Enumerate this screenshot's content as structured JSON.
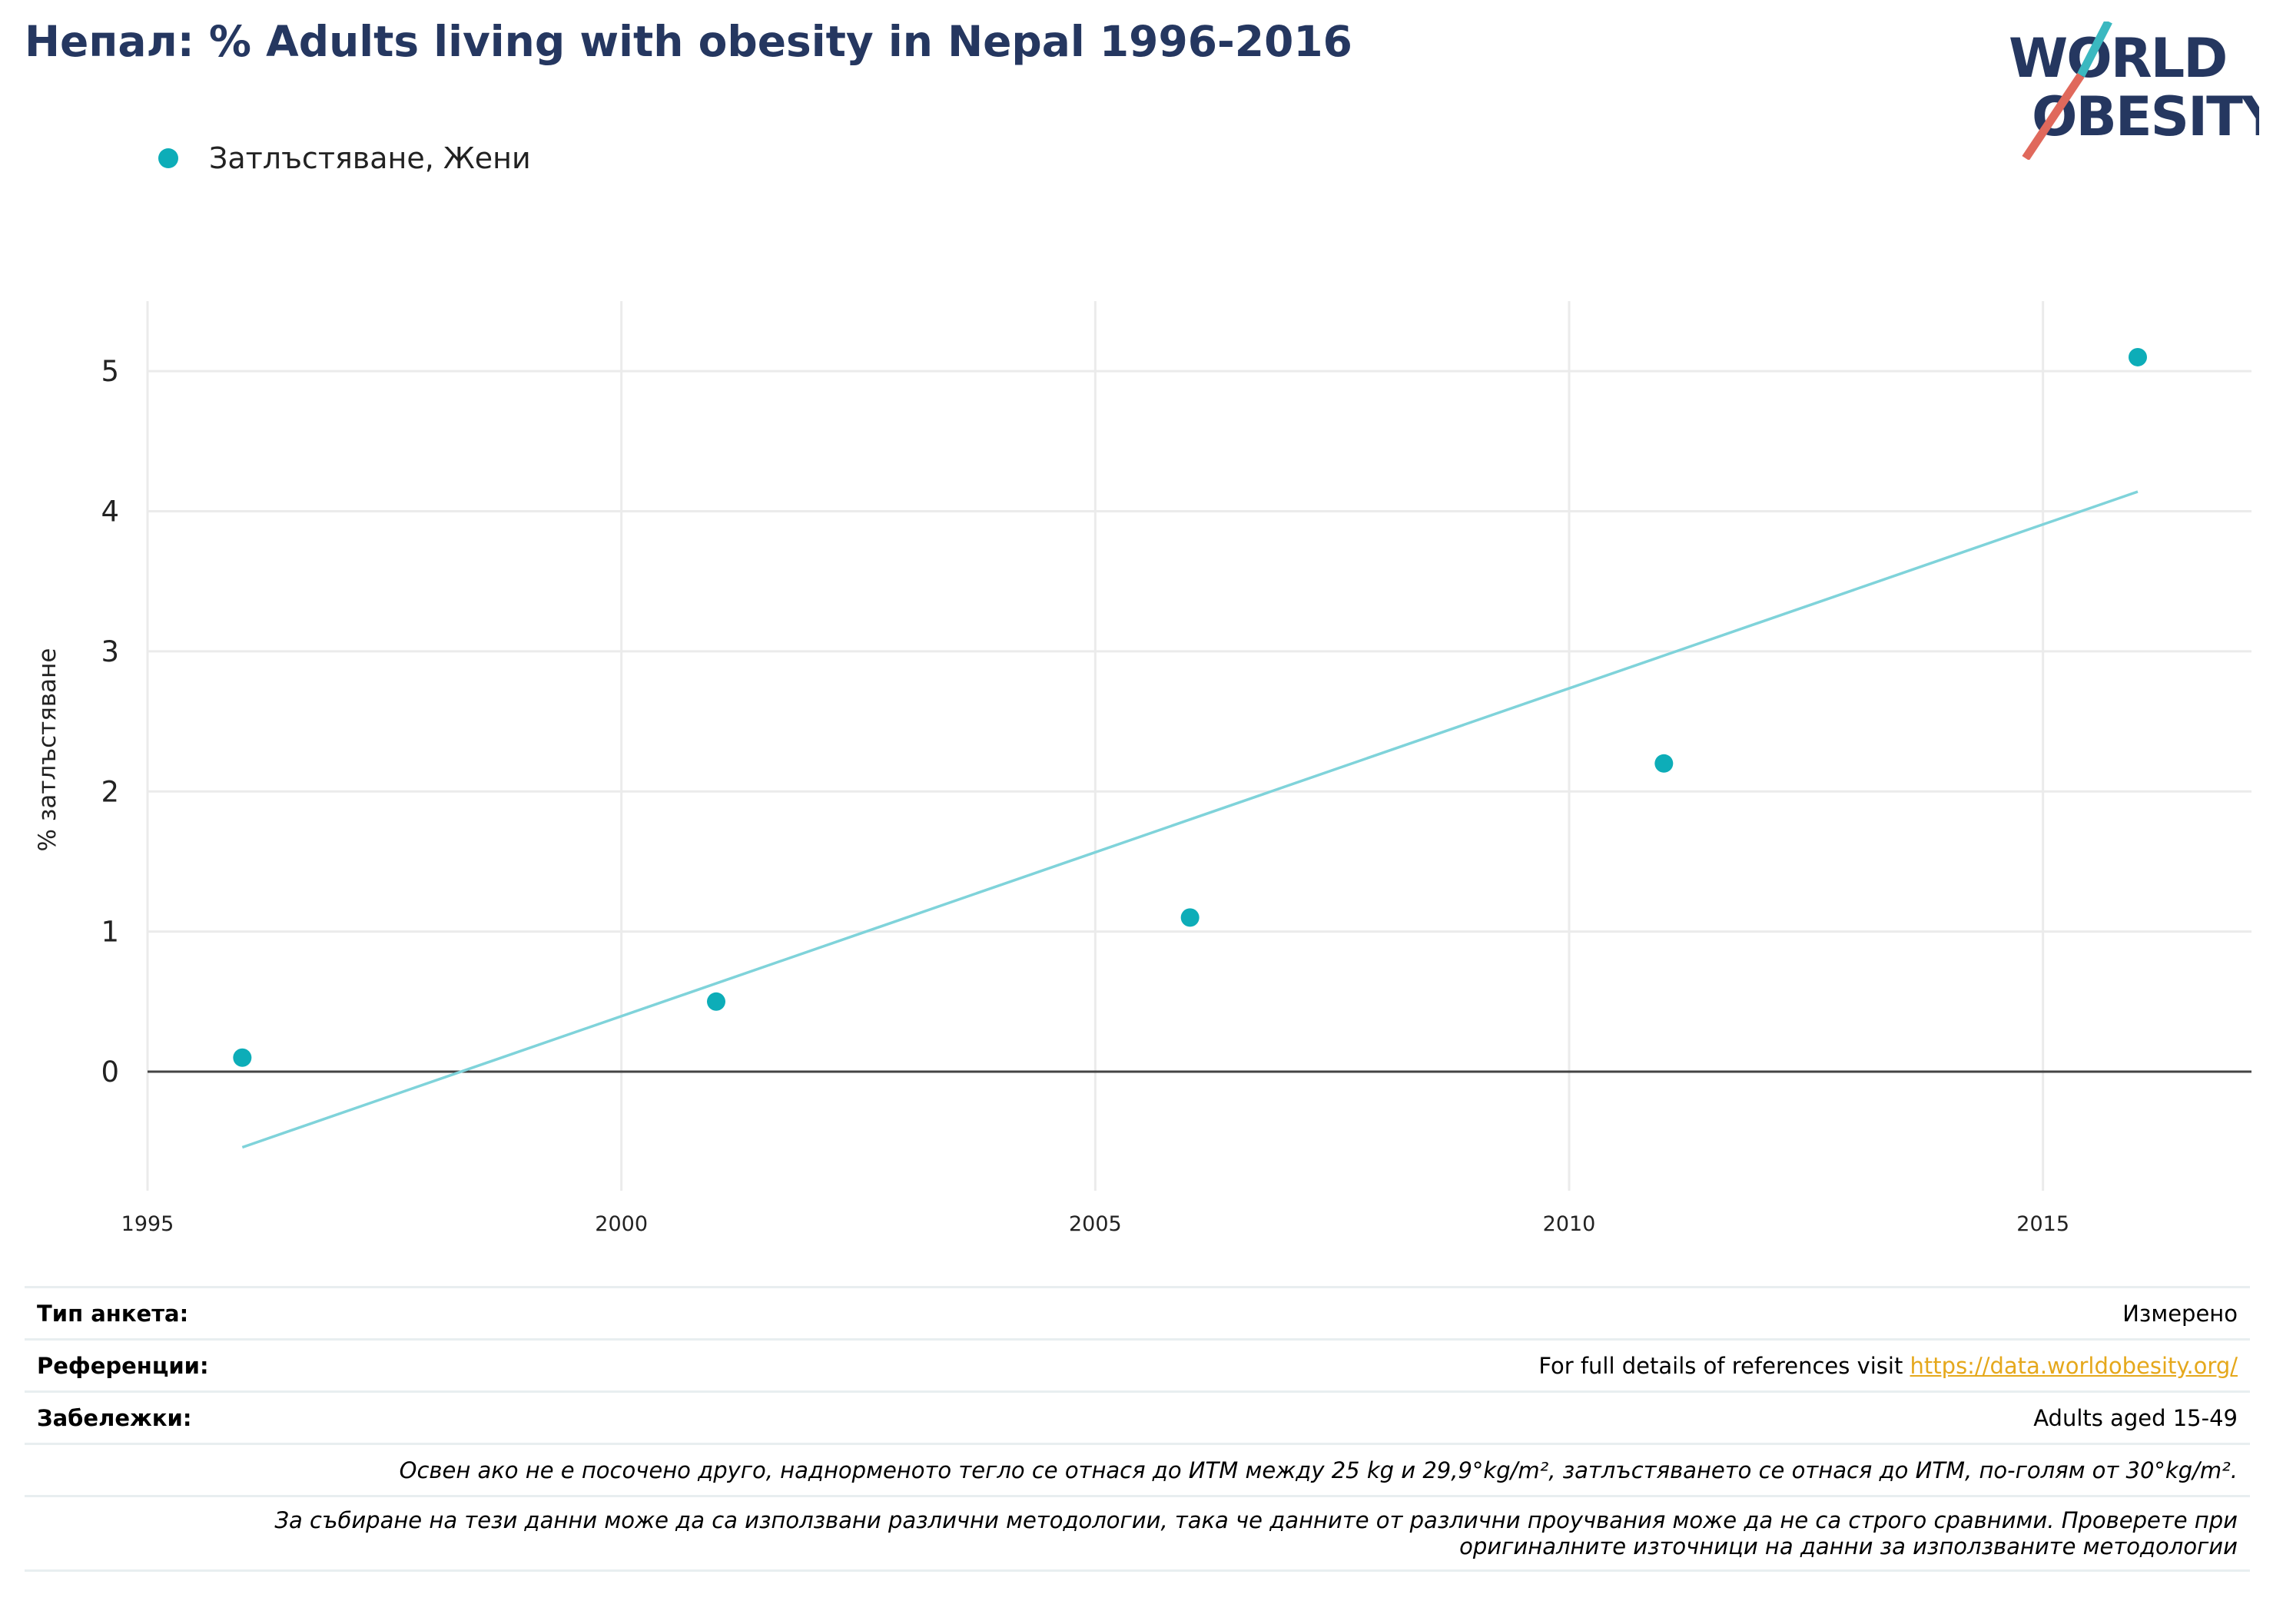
{
  "title": "Непал: % Adults living with obesity in Nepal 1996-2016",
  "logo": {
    "line1": "WORLD",
    "line2": "OBESITY"
  },
  "colors": {
    "accent": "#0dadb8",
    "trend": "#7fd3da",
    "title": "#253760",
    "link": "#e5a81c"
  },
  "chart_data": {
    "type": "scatter",
    "series": [
      {
        "name": "Затлъстяване, Жени",
        "x": [
          1996,
          2001,
          2006,
          2011,
          2016
        ],
        "y": [
          0.1,
          0.5,
          1.1,
          2.2,
          5.1
        ]
      }
    ],
    "trendline": {
      "x": [
        1996,
        2016
      ],
      "y": [
        -0.54,
        4.14
      ]
    },
    "xlim": [
      1995,
      2017.2
    ],
    "ylim": [
      -0.85,
      5.5
    ],
    "xticks": [
      1995,
      2000,
      2005,
      2010,
      2015
    ],
    "yticks": [
      0,
      1,
      2,
      3,
      4,
      5
    ],
    "xlabel": "",
    "ylabel": "% затлъстяване",
    "grid": true,
    "legend_position": "top-left"
  },
  "info": {
    "survey_label": "Тип анкета:",
    "survey_value": "Измерено",
    "refs_label": "Референции:",
    "refs_text": "For full details of references visit ",
    "refs_link": "https://data.worldobesity.org/",
    "notes_label": "Забележки:",
    "notes_value": "Adults aged 15-49",
    "note_definition": "Освен ако не е посочено друго, наднорменото тегло се отнася до ИТМ между 25 kg и 29,9°kg/m², затлъстяването се отнася до ИТМ, по-голям от 30°kg/m².",
    "note_methods_line1": "За събиране на тези данни може да са използвани различни методологии, така че данните от различни проучвания може да не са строго сравними. Проверете при",
    "note_methods_line2": "оригиналните източници на данни за използваните методологии"
  }
}
